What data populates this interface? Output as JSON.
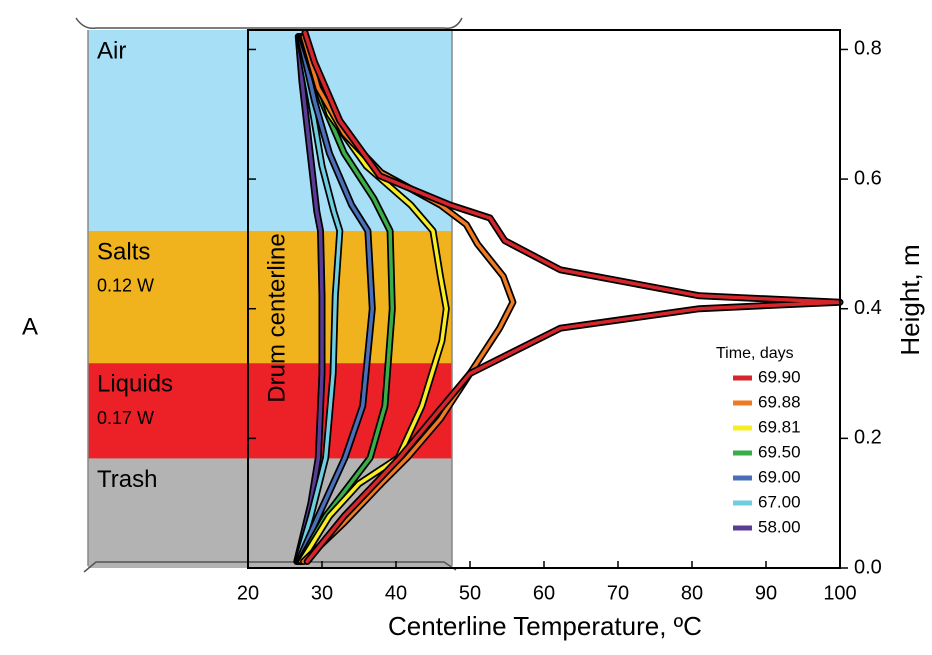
{
  "chart_data": {
    "type": "line",
    "panel_label": "A",
    "xlabel": "Centerline Temperature, ºC",
    "ylabel": "Height, m",
    "annotation": "Drum centerline",
    "legend_title": "Time, days",
    "xlim": [
      20,
      100
    ],
    "xticks": [
      20,
      30,
      40,
      50,
      60,
      70,
      80,
      90,
      100
    ],
    "ylim": [
      0,
      0.83
    ],
    "yticks": [
      {
        "value": 0,
        "label": "0.0"
      },
      0.2,
      0.4,
      0.6,
      0.8
    ],
    "layers": [
      {
        "name": "Air",
        "color": "#a6dff6",
        "range": [
          0.52,
          0.83
        ]
      },
      {
        "name": "Salts",
        "power": "0.12 W",
        "color": "#f0b31e",
        "range": [
          0.316,
          0.52
        ]
      },
      {
        "name": "Liquids",
        "power": "0.17 W",
        "color": "#ec2027",
        "range": [
          0.169,
          0.316
        ]
      },
      {
        "name": "Trash",
        "color": "#b3b3b3",
        "range": [
          0,
          0.169
        ]
      }
    ],
    "series": [
      {
        "name": "69.90",
        "color": "#d7262b",
        "x": [
          28,
          33,
          40.5,
          50,
          62.2,
          81,
          100,
          81,
          62.2,
          54.7,
          52.7,
          47.3,
          37.8,
          32.4,
          29,
          27.7
        ],
        "values": [
          0.01,
          0.08,
          0.17,
          0.3,
          0.37,
          0.4,
          0.41,
          0.42,
          0.46,
          0.505,
          0.54,
          0.56,
          0.605,
          0.69,
          0.78,
          0.826
        ]
      },
      {
        "name": "69.88",
        "color": "#f07a22",
        "x": [
          27.5,
          33,
          38,
          41.5,
          46,
          50,
          54,
          55.8,
          54.5,
          51,
          49.5,
          46,
          38,
          33,
          29.5,
          27.5
        ],
        "values": [
          0.01,
          0.07,
          0.13,
          0.17,
          0.23,
          0.3,
          0.37,
          0.41,
          0.45,
          0.5,
          0.53,
          0.56,
          0.61,
          0.67,
          0.74,
          0.82
        ]
      },
      {
        "name": "69.81",
        "color": "#f6ee22",
        "x": [
          27.2,
          31,
          35,
          40.3,
          43.5,
          46.2,
          46.8,
          46,
          45,
          42,
          36,
          31,
          27.3
        ],
        "values": [
          0.01,
          0.08,
          0.13,
          0.17,
          0.25,
          0.35,
          0.4,
          0.45,
          0.52,
          0.56,
          0.62,
          0.7,
          0.82
        ]
      },
      {
        "name": "69.50",
        "color": "#3aad48",
        "x": [
          27,
          30.5,
          36.5,
          38.5,
          39.5,
          39.2,
          37,
          33,
          30,
          27.2
        ],
        "values": [
          0.01,
          0.08,
          0.17,
          0.25,
          0.4,
          0.52,
          0.57,
          0.64,
          0.72,
          0.82
        ]
      },
      {
        "name": "69.00",
        "color": "#4a6fb8",
        "x": [
          26.8,
          29.5,
          33.1,
          35.5,
          36.8,
          36.2,
          34,
          31,
          29,
          27
        ],
        "values": [
          0.01,
          0.08,
          0.17,
          0.25,
          0.4,
          0.52,
          0.56,
          0.64,
          0.72,
          0.82
        ]
      },
      {
        "name": "67.00",
        "color": "#6fcde0",
        "x": [
          26.7,
          28.5,
          30.5,
          31.5,
          31.8,
          32.4,
          31.6,
          30,
          28.5,
          26.9
        ],
        "values": [
          0.01,
          0.08,
          0.17,
          0.3,
          0.42,
          0.52,
          0.55,
          0.62,
          0.72,
          0.82
        ]
      },
      {
        "name": "58.00",
        "color": "#5a3b96",
        "x": [
          26.6,
          28.5,
          29.5,
          30,
          30,
          29.8,
          29.3,
          28.3,
          27.3,
          26.8
        ],
        "values": [
          0.01,
          0.1,
          0.17,
          0.3,
          0.42,
          0.52,
          0.55,
          0.65,
          0.75,
          0.82
        ]
      }
    ]
  }
}
